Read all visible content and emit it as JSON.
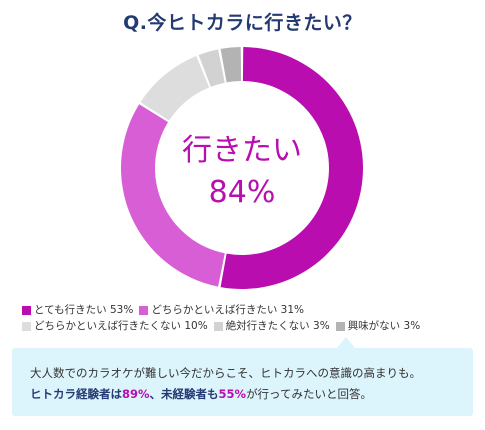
{
  "title": "Q.今ヒトカラに行きたい？",
  "chart_data": {
    "type": "pie",
    "labels": [
      "とても行きたい",
      "どちらかといえば行きたい",
      "どちらかといえば行きたくない",
      "絶対行きたくない",
      "興味がない"
    ],
    "values": [
      53,
      31,
      10,
      3,
      3
    ],
    "colors": [
      "#b90db0",
      "#d85ed6",
      "#dddddd",
      "#d2d2d2",
      "#b3b3b3"
    ],
    "center_label": "行きたい",
    "center_value": "84%"
  },
  "legend": [
    {
      "text": "とても行きたい 53%"
    },
    {
      "text": "どちらかといえば行きたい 31%"
    },
    {
      "text": "どちらかといえば行きたくない 10%"
    },
    {
      "text": "絶対行きたくない 3%"
    },
    {
      "text": "興味がない 3%"
    }
  ],
  "callout": {
    "line1": "大人数でのカラオケが難しい今だからこそ、ヒトカラへの意識の高まりも。",
    "line2_part1": "ヒトカラ経験者は",
    "line2_pct1": "89%",
    "line2_part2": "、未経験者も",
    "line2_pct2": "55%",
    "line2_part3": "が行ってみたいと回答。"
  }
}
